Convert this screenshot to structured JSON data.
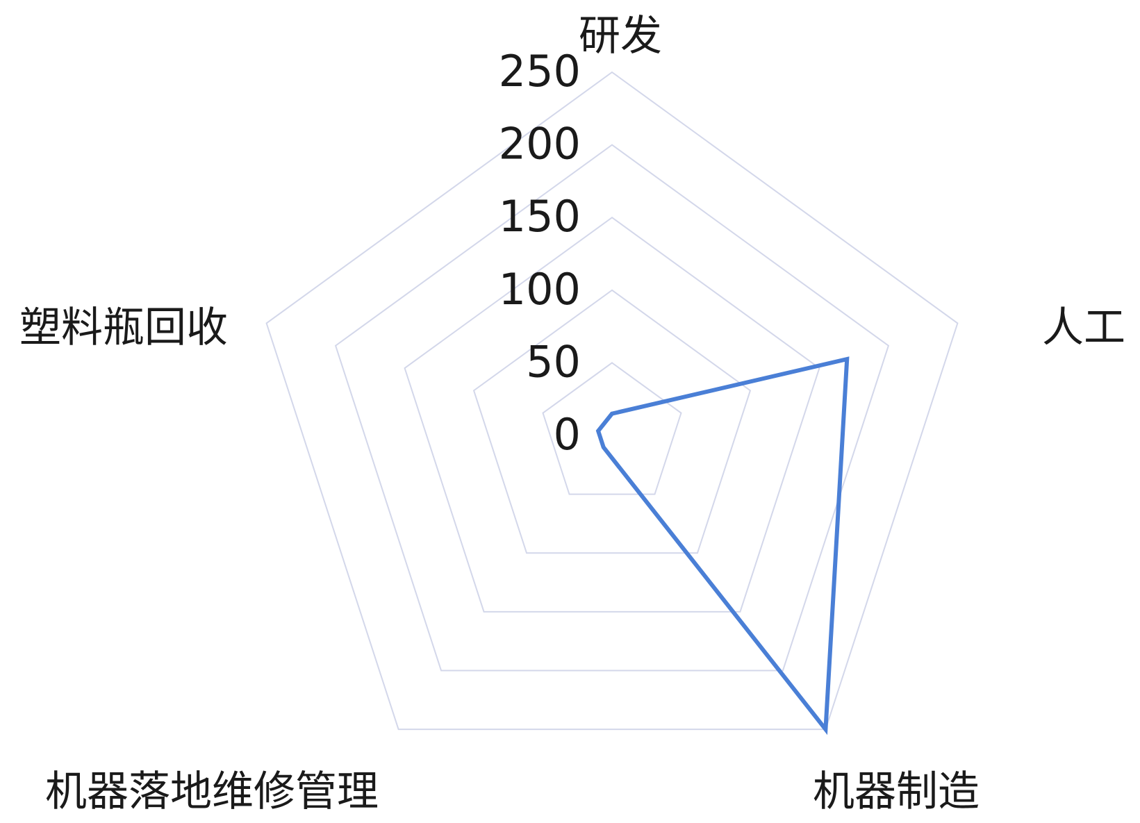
{
  "chart_data": {
    "type": "radar",
    "title": "",
    "axes": [
      "研发",
      "人工",
      "机器制造",
      "机器落地维修管理",
      "塑料瓶回收"
    ],
    "ticks": [
      "0",
      "50",
      "100",
      "150",
      "200",
      "250"
    ],
    "range": [
      0,
      250
    ],
    "grid": true,
    "legend": "none",
    "series": [
      {
        "values": [
          15,
          170,
          250,
          10,
          10
        ]
      }
    ],
    "colors": {
      "series": "#4a7fd6",
      "grid": "#d3d7ea",
      "text": "#1a1a1a"
    }
  }
}
